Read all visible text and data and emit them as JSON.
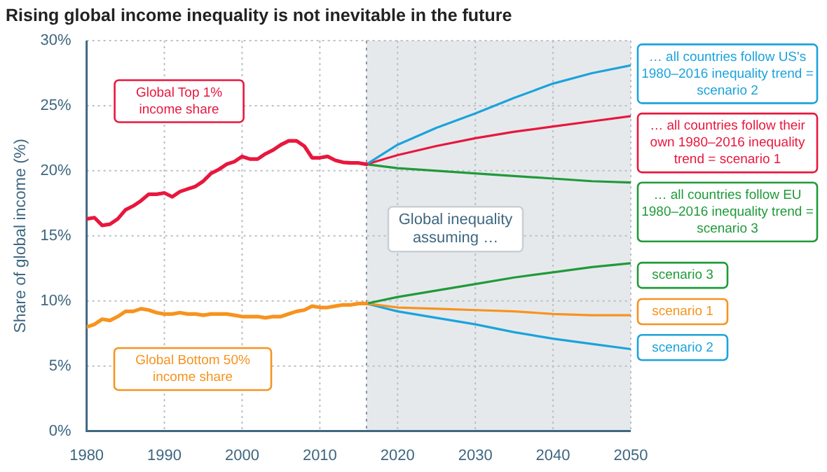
{
  "chart_data": {
    "type": "line",
    "title": "Rising global income inequality is not inevitable in the future",
    "ylabel": "Share of global income (%)",
    "xlim": [
      1980,
      2050
    ],
    "xticks": [
      1980,
      1990,
      2000,
      2010,
      2020,
      2030,
      2040,
      2050
    ],
    "ylim": [
      0,
      30
    ],
    "yticks": [
      {
        "value": 0,
        "label": "0%"
      },
      {
        "value": 5,
        "label": "5%"
      },
      {
        "value": 10,
        "label": "10%"
      },
      {
        "value": 15,
        "label": "15%"
      },
      {
        "value": 20,
        "label": "20%"
      },
      {
        "value": 25,
        "label": "25%"
      },
      {
        "value": 30,
        "label": "30%"
      }
    ],
    "grid": true,
    "legend": false,
    "bands": [
      {
        "axis": "x",
        "from": 2016,
        "to": 2050,
        "color": "#e6e9ec"
      }
    ],
    "ref_lines": [
      {
        "axis": "x",
        "value": 2016,
        "color": "#8a96a0",
        "line_style": "dotted"
      }
    ],
    "annotations": [
      "Global inequality assuming …"
    ],
    "series": [
      {
        "name": "Global Top 1% income share",
        "color": "#e8173d",
        "x": [
          1980,
          1981,
          1982,
          1983,
          1984,
          1985,
          1986,
          1987,
          1988,
          1989,
          1990,
          1991,
          1992,
          1993,
          1994,
          1995,
          1996,
          1997,
          1998,
          1999,
          2000,
          2001,
          2002,
          2003,
          2004,
          2005,
          2006,
          2007,
          2008,
          2009,
          2010,
          2011,
          2012,
          2013,
          2014,
          2015,
          2016
        ],
        "values": [
          16.3,
          16.4,
          15.8,
          15.9,
          16.3,
          17.0,
          17.3,
          17.7,
          18.2,
          18.2,
          18.3,
          18.0,
          18.4,
          18.6,
          18.8,
          19.2,
          19.8,
          20.1,
          20.5,
          20.7,
          21.1,
          20.9,
          20.9,
          21.3,
          21.6,
          22.0,
          22.3,
          22.3,
          21.9,
          21.0,
          21.0,
          21.1,
          20.8,
          20.65,
          20.6,
          20.6,
          20.5
        ]
      },
      {
        "name": "Global Bottom 50% income share",
        "color": "#f7931e",
        "x": [
          1980,
          1981,
          1982,
          1983,
          1984,
          1985,
          1986,
          1987,
          1988,
          1989,
          1990,
          1991,
          1992,
          1993,
          1994,
          1995,
          1996,
          1997,
          1998,
          1999,
          2000,
          2001,
          2002,
          2003,
          2004,
          2005,
          2006,
          2007,
          2008,
          2009,
          2010,
          2011,
          2012,
          2013,
          2014,
          2015,
          2016
        ],
        "values": [
          8.0,
          8.2,
          8.6,
          8.5,
          8.8,
          9.2,
          9.2,
          9.4,
          9.3,
          9.1,
          9.0,
          9.0,
          9.1,
          9.0,
          9.0,
          8.9,
          9.0,
          9.0,
          9.0,
          8.9,
          8.8,
          8.8,
          8.8,
          8.7,
          8.8,
          8.8,
          9.0,
          9.2,
          9.3,
          9.6,
          9.5,
          9.5,
          9.6,
          9.7,
          9.7,
          9.8,
          9.8
        ]
      },
      {
        "name": "… all countries follow US's 1980–2016 inequality trend = scenario 2",
        "color": "#1ba3dc",
        "x": [
          2016,
          2020,
          2025,
          2030,
          2035,
          2040,
          2045,
          2050
        ],
        "values": [
          20.5,
          22.0,
          23.3,
          24.4,
          25.6,
          26.7,
          27.5,
          28.1
        ]
      },
      {
        "name": "… all countries follow their own 1980–2016 inequality trend = scenario 1",
        "color": "#e8173d",
        "x": [
          2016,
          2020,
          2025,
          2030,
          2035,
          2040,
          2045,
          2050
        ],
        "values": [
          20.5,
          21.2,
          21.9,
          22.5,
          23.0,
          23.4,
          23.8,
          24.2
        ]
      },
      {
        "name": "… all countries follow EU 1980–2016 inequality trend = scenario 3",
        "color": "#1f9a3a",
        "x": [
          2016,
          2020,
          2025,
          2030,
          2035,
          2040,
          2045,
          2050
        ],
        "values": [
          20.5,
          20.2,
          20.0,
          19.8,
          19.6,
          19.4,
          19.2,
          19.1
        ]
      },
      {
        "name": "scenario 3",
        "color": "#1f9a3a",
        "x": [
          2016,
          2020,
          2025,
          2030,
          2035,
          2040,
          2045,
          2050
        ],
        "values": [
          9.8,
          10.3,
          10.8,
          11.3,
          11.8,
          12.2,
          12.6,
          12.9
        ]
      },
      {
        "name": "scenario 1",
        "color": "#f7931e",
        "x": [
          2016,
          2020,
          2025,
          2030,
          2035,
          2040,
          2045,
          2050
        ],
        "values": [
          9.8,
          9.5,
          9.4,
          9.3,
          9.2,
          9.0,
          8.9,
          8.9
        ]
      },
      {
        "name": "scenario 2",
        "color": "#1ba3dc",
        "x": [
          2016,
          2020,
          2025,
          2030,
          2035,
          2040,
          2045,
          2050
        ],
        "values": [
          9.8,
          9.2,
          8.7,
          8.2,
          7.6,
          7.1,
          6.7,
          6.3
        ]
      }
    ]
  }
}
